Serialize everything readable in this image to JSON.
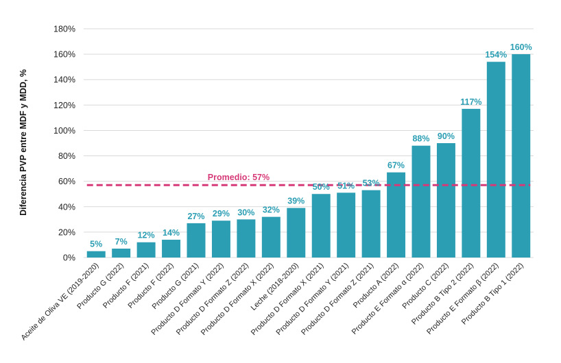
{
  "chart_data": {
    "type": "bar",
    "title": "",
    "xlabel": "",
    "ylabel": "Diferencia PVP entre MDF y MDD, %",
    "ylim": [
      0,
      180
    ],
    "yticks": [
      "0%",
      "20%",
      "40%",
      "60%",
      "80%",
      "100%",
      "120%",
      "140%",
      "160%",
      "180%"
    ],
    "grid": true,
    "legend": "none",
    "categories": [
      "Aceite de Oliva VE (2019-2020)",
      "Producto G (2022)",
      "Producto F (2021)",
      "Producto F (2022)",
      "Producto G (2021)",
      "Producto D Formato Y (2022)",
      "Producto D Formato Z (2022)",
      "Producto D Formato X (2022)",
      "Leche (2018-2020)",
      "Producto D Formato X (2021)",
      "Producto D Formato Y (2021)",
      "Producto D Formato Z (2021)",
      "Producto A (2022)",
      "Producto E Formato α (2022)",
      "Producto C (2022)",
      "Producto B Tipo 2 (2022)",
      "Producto E Formato β (2022)",
      "Producto B Tipo 1 (2022)"
    ],
    "values": [
      5,
      7,
      12,
      14,
      27,
      29,
      30,
      32,
      39,
      50,
      51,
      53,
      67,
      88,
      90,
      117,
      154,
      160
    ],
    "data_labels": [
      "5%",
      "7%",
      "12%",
      "14%",
      "27%",
      "29%",
      "30%",
      "32%",
      "39%",
      "50%",
      "51%",
      "53%",
      "67%",
      "88%",
      "90%",
      "117%",
      "154%",
      "160%"
    ],
    "average": {
      "value": 57,
      "label": "Promedio: 57%"
    },
    "colors": {
      "bar": "#2b9eb3",
      "data_label": "#2b9eb3",
      "average": "#d63a78",
      "grid": "#d9d9d9"
    }
  }
}
